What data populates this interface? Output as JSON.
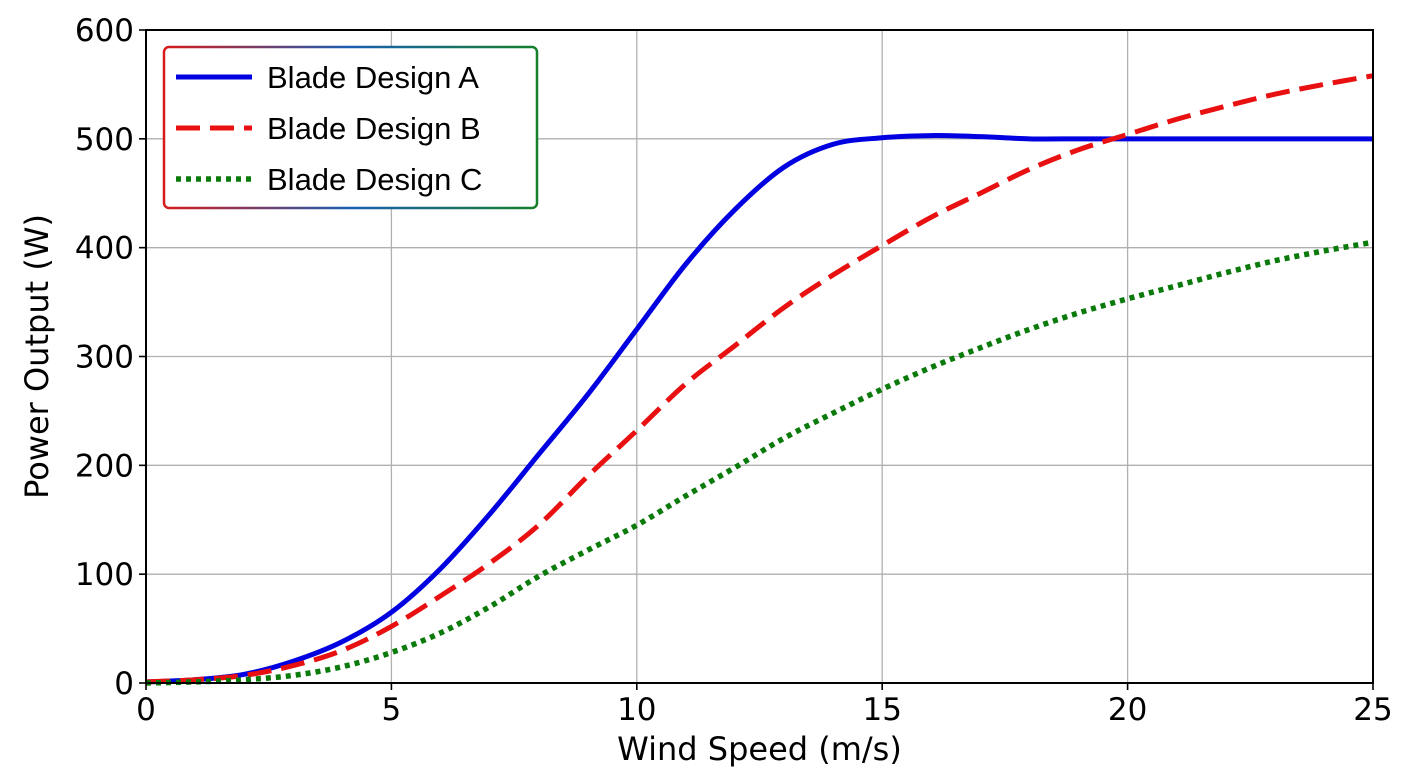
{
  "chart_data": {
    "type": "line",
    "xlabel": "Wind Speed (m/s)",
    "ylabel": "Power Output (W)",
    "xlim": [
      0,
      25
    ],
    "ylim": [
      0,
      600
    ],
    "xticks": [
      0,
      5,
      10,
      15,
      20,
      25
    ],
    "yticks": [
      0,
      100,
      200,
      300,
      400,
      500,
      600
    ],
    "xtick_labels": [
      "0",
      "5",
      "10",
      "15",
      "20",
      "25"
    ],
    "ytick_labels": [
      "0",
      "100",
      "200",
      "300",
      "400",
      "500",
      "600"
    ],
    "grid": true,
    "legend_position": "top-left",
    "x": [
      0,
      1,
      2,
      3,
      4,
      5,
      6,
      7,
      8,
      9,
      10,
      11,
      12,
      13,
      14,
      15,
      16,
      17,
      18,
      19,
      20,
      21,
      22,
      23,
      24,
      25
    ],
    "series": [
      {
        "name": "Blade Design A",
        "color": "#0000e0",
        "style": "solid",
        "values": [
          1,
          3,
          8,
          20,
          38,
          65,
          105,
          155,
          210,
          265,
          325,
          385,
          435,
          474,
          495,
          501,
          503,
          502,
          500,
          500,
          500,
          500,
          500,
          500,
          500,
          500
        ]
      },
      {
        "name": "Blade Design B",
        "color": "#e81010",
        "style": "dashed",
        "values": [
          1,
          3,
          7,
          16,
          30,
          52,
          80,
          110,
          145,
          190,
          232,
          275,
          310,
          345,
          375,
          402,
          428,
          450,
          472,
          490,
          504,
          518,
          530,
          541,
          550,
          558
        ]
      },
      {
        "name": "Blade Design C",
        "color": "#0a7a0a",
        "style": "dotted",
        "values": [
          0,
          1,
          3,
          7,
          15,
          28,
          46,
          70,
          98,
          122,
          145,
          172,
          198,
          225,
          248,
          270,
          290,
          308,
          325,
          340,
          353,
          365,
          377,
          388,
          397,
          405
        ]
      }
    ]
  }
}
